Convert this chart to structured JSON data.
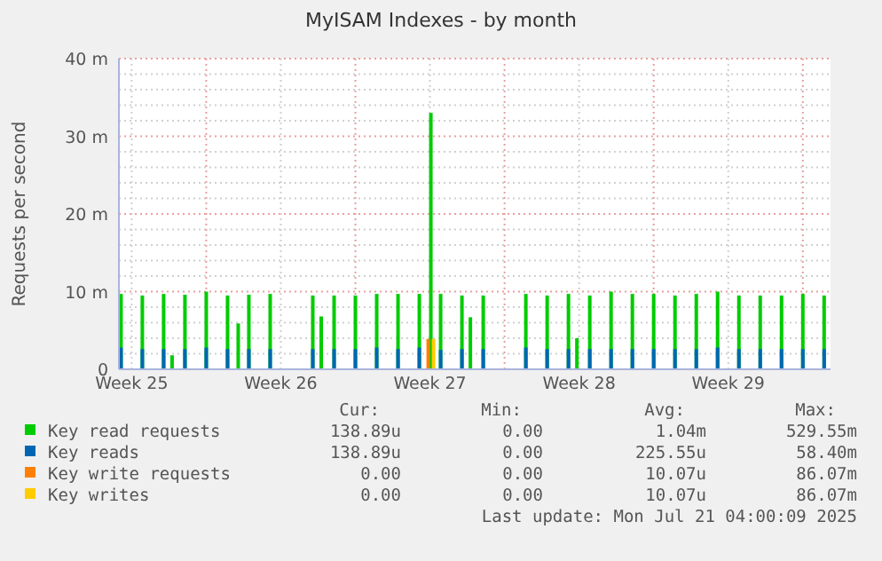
{
  "chart_data": {
    "type": "bar",
    "title": "MyISAM Indexes - by month",
    "ylabel": "Requests per second",
    "xlim": [
      "2025-06-18T21:36",
      "2025-07-22T07:12"
    ],
    "xticks": [
      {
        "value": "2025-06-19T12:00",
        "label": "Week 25"
      },
      {
        "value": "2025-06-23T00:00",
        "label": null
      },
      {
        "value": "2025-06-26T12:00",
        "label": "Week 26"
      },
      {
        "value": "2025-06-30T00:00",
        "label": null
      },
      {
        "value": "2025-07-03T12:00",
        "label": "Week 27"
      },
      {
        "value": "2025-07-07T00:00",
        "label": null
      },
      {
        "value": "2025-07-10T12:00",
        "label": "Week 28"
      },
      {
        "value": "2025-07-14T00:00",
        "label": null
      },
      {
        "value": "2025-07-17T12:00",
        "label": "Week 29"
      },
      {
        "value": "2025-07-21T00:00",
        "label": null
      }
    ],
    "ylim": [
      0,
      40
    ],
    "yticks": [
      0,
      {
        "value": 2,
        "label": null
      },
      {
        "value": 4,
        "label": null
      },
      {
        "value": 6,
        "label": null
      },
      {
        "value": 8,
        "label": null
      },
      {
        "value": 10,
        "label": "10 m"
      },
      {
        "value": 12,
        "label": null
      },
      {
        "value": 14,
        "label": null
      },
      {
        "value": 16,
        "label": null
      },
      {
        "value": 18,
        "label": null
      },
      {
        "value": 20,
        "label": "20 m"
      },
      {
        "value": 22,
        "label": null
      },
      {
        "value": 24,
        "label": null
      },
      {
        "value": 26,
        "label": null
      },
      {
        "value": 28,
        "label": null
      },
      {
        "value": 30,
        "label": "30 m"
      },
      {
        "value": 32,
        "label": null
      },
      {
        "value": 34,
        "label": null
      },
      {
        "value": 36,
        "label": null
      },
      {
        "value": 38,
        "label": null
      },
      {
        "value": 40,
        "label": "40 m"
      }
    ],
    "grid": true,
    "legend": "bottom",
    "series": [
      {
        "name": "Key read requests",
        "color": "#00cc00",
        "x": [
          "2025-06-19T00:00",
          "2025-06-20T00:00",
          "2025-06-21T00:00",
          "2025-06-21T09:30",
          "2025-06-22T00:00",
          "2025-06-23T00:00",
          "2025-06-24T00:00",
          "2025-06-24T12:00",
          "2025-06-25T00:00",
          "2025-06-26T00:00",
          "2025-06-28T00:00",
          "2025-06-28T09:30",
          "2025-06-29T00:00",
          "2025-06-30T00:00",
          "2025-07-01T00:00",
          "2025-07-02T00:00",
          "2025-07-03T00:00",
          "2025-07-03T13:00",
          "2025-07-04T00:00",
          "2025-07-05T00:00",
          "2025-07-05T09:30",
          "2025-07-06T00:00",
          "2025-07-08T00:00",
          "2025-07-09T00:00",
          "2025-07-10T00:00",
          "2025-07-10T09:30",
          "2025-07-11T00:00",
          "2025-07-12T00:00",
          "2025-07-13T00:00",
          "2025-07-14T00:00",
          "2025-07-15T00:00",
          "2025-07-16T00:00",
          "2025-07-17T00:00",
          "2025-07-18T00:00",
          "2025-07-19T00:00",
          "2025-07-20T00:00",
          "2025-07-21T00:00",
          "2025-07-22T00:00"
        ],
        "values": [
          9.7,
          9.5,
          9.7,
          1.8,
          9.6,
          10,
          9.5,
          5.9,
          9.6,
          9.7,
          9.5,
          6.8,
          9.5,
          9.5,
          9.7,
          9.7,
          9.7,
          33,
          9.7,
          9.5,
          6.7,
          9.5,
          9.7,
          9.5,
          9.7,
          4.0,
          9.5,
          10,
          9.7,
          9.7,
          9.5,
          9.7,
          10,
          9.5,
          9.5,
          9.5,
          9.7,
          9.5
        ]
      },
      {
        "name": "Key reads",
        "color": "#0066b3",
        "x": [
          "2025-06-19T00:00",
          "2025-06-20T00:00",
          "2025-06-21T00:00",
          "2025-06-22T00:00",
          "2025-06-23T00:00",
          "2025-06-24T00:00",
          "2025-06-25T00:00",
          "2025-06-26T00:00",
          "2025-06-28T00:00",
          "2025-06-29T00:00",
          "2025-06-30T00:00",
          "2025-07-01T00:00",
          "2025-07-02T00:00",
          "2025-07-03T00:00",
          "2025-07-04T00:00",
          "2025-07-05T00:00",
          "2025-07-06T00:00",
          "2025-07-08T00:00",
          "2025-07-09T00:00",
          "2025-07-10T00:00",
          "2025-07-11T00:00",
          "2025-07-12T00:00",
          "2025-07-13T00:00",
          "2025-07-14T00:00",
          "2025-07-15T00:00",
          "2025-07-16T00:00",
          "2025-07-17T00:00",
          "2025-07-18T00:00",
          "2025-07-19T00:00",
          "2025-07-20T00:00",
          "2025-07-21T00:00",
          "2025-07-22T00:00"
        ],
        "values": [
          2.8,
          2.6,
          2.6,
          2.6,
          2.8,
          2.6,
          2.6,
          2.6,
          2.6,
          2.6,
          2.6,
          2.8,
          2.6,
          2.8,
          2.5,
          2.6,
          2.6,
          2.8,
          2.6,
          2.6,
          2.6,
          2.6,
          2.6,
          2.6,
          2.6,
          2.6,
          2.8,
          2.6,
          2.6,
          2.6,
          2.6,
          2.6
        ]
      },
      {
        "name": "Key write requests",
        "color": "#ff8000",
        "x": [
          "2025-07-03T10:00"
        ],
        "values": [
          3.9
        ]
      },
      {
        "name": "Key writes",
        "color": "#ffcc00",
        "x": [
          "2025-07-03T16:00"
        ],
        "values": [
          3.9
        ]
      }
    ],
    "annotations": [
      "Cur:",
      "Min:",
      "Avg:",
      "Max:",
      "138.89u",
      "0.00",
      "1.04m",
      "529.55m",
      "138.89u",
      "0.00",
      "225.55u",
      "58.40m",
      "0.00",
      "0.00",
      "10.07u",
      "86.07m",
      "0.00",
      "0.00",
      "10.07u",
      "86.07m",
      "Last update: Mon Jul 21 04:00:09 2025"
    ]
  }
}
